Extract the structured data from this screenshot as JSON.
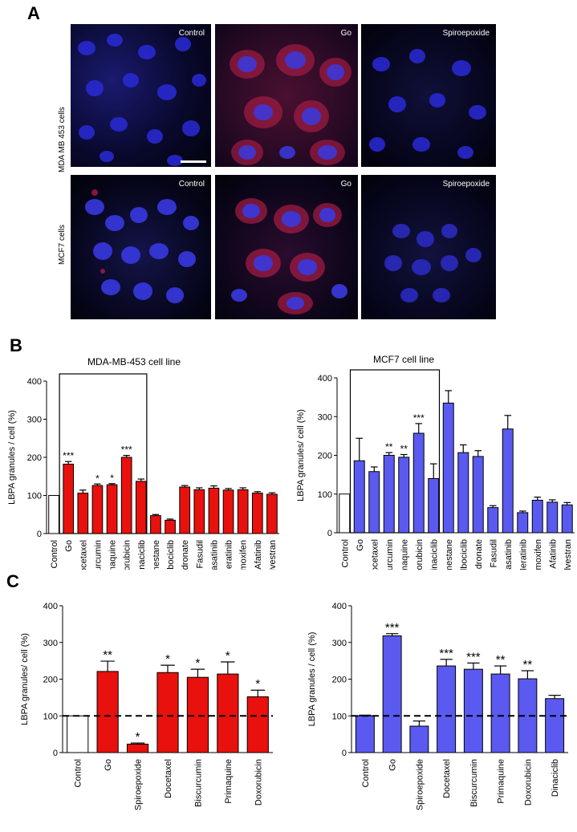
{
  "panels": {
    "a": "A",
    "b": "B",
    "c": "C"
  },
  "panel_a": {
    "rows": [
      {
        "label": "MDA MB 453  cells",
        "images": [
          "Control",
          "Go",
          "Spiroepoxide"
        ]
      },
      {
        "label": "MCF7 cells",
        "images": [
          "Control",
          "Go",
          "Spiroepoxide"
        ]
      }
    ]
  },
  "chart_data": [
    {
      "type": "bar",
      "panel": "B-left",
      "title": "MDA-MB-453 cell line",
      "ylabel": "LBPA granules / cell (%)",
      "ylim": [
        0,
        400
      ],
      "yticks": [
        "0",
        "100",
        "200",
        "300",
        "400"
      ],
      "categories": [
        "Control",
        "Go",
        "Docetaxel",
        "Biscurcumin",
        "Primaquine",
        "Doxorubicin",
        "Dinaciclib",
        "Exemestane",
        "Palbociclib",
        "Alendronate",
        "Fasudil",
        "Dasatinib",
        "Neratinib",
        "Tamoxifen",
        "Afatinib",
        "Fulvestran"
      ],
      "values": [
        100,
        182,
        106,
        126,
        128,
        200,
        137,
        47,
        35,
        122,
        115,
        119,
        114,
        115,
        106,
        103
      ],
      "errors": [
        0,
        7,
        8,
        4,
        3,
        5,
        6,
        3,
        3,
        4,
        5,
        6,
        4,
        5,
        4,
        4
      ],
      "significance": [
        "",
        "***",
        "",
        "*",
        "*",
        "***",
        "",
        "",
        "",
        "",
        "",
        "",
        "",
        "",
        "",
        ""
      ],
      "boxed_range": [
        1,
        6
      ],
      "colors": {
        "control": "#ffffff",
        "bars": "#e8110e"
      }
    },
    {
      "type": "bar",
      "panel": "B-right",
      "title": "MCF7 cell line",
      "ylabel": "LBPA granules/ cell (%)",
      "ylim": [
        0,
        400
      ],
      "yticks": [
        "0",
        "100",
        "200",
        "300",
        "400"
      ],
      "categories": [
        "Control",
        "Go",
        "Docetaxel",
        "Biscurcumin",
        "Primaquine",
        "Doxorubicin",
        "Dinaciclib",
        "Exemestane",
        "Palbociclib",
        "Alendronate",
        "Fasudil",
        "Dasatinib",
        "Neratinib",
        "Tamoxifen",
        "Afatinib",
        "Fulvestran"
      ],
      "values": [
        100,
        186,
        158,
        200,
        195,
        257,
        140,
        335,
        207,
        197,
        65,
        268,
        52,
        84,
        79,
        72
      ],
      "errors": [
        0,
        58,
        12,
        7,
        7,
        25,
        38,
        32,
        20,
        15,
        5,
        35,
        4,
        8,
        6,
        6
      ],
      "significance": [
        "",
        "",
        "",
        "**",
        "**",
        "***",
        "",
        "",
        "",
        "",
        "",
        "",
        "",
        "",
        "",
        ""
      ],
      "boxed_range": [
        1,
        6
      ],
      "colors": {
        "control": "#ffffff",
        "bars": "#5a5af0"
      }
    },
    {
      "type": "bar",
      "panel": "C-left",
      "ylabel": "LBPA granules/ cell (%)",
      "ylim": [
        0,
        400
      ],
      "yticks": [
        "0",
        "100",
        "200",
        "300",
        "400"
      ],
      "categories": [
        "Control",
        "Go",
        "Spiroepoxide",
        "Docetaxel",
        "Biscurcumin",
        "Primaquine",
        "Doxorubicin"
      ],
      "values": [
        100,
        221,
        23,
        218,
        205,
        214,
        152
      ],
      "errors": [
        0,
        28,
        3,
        20,
        22,
        33,
        18
      ],
      "significance": [
        "",
        "**",
        "*",
        "*",
        "*",
        "*",
        "*"
      ],
      "reference_line": 100,
      "colors": {
        "control": "#ffffff",
        "bars": "#e8110e"
      }
    },
    {
      "type": "bar",
      "panel": "C-right",
      "ylabel": "LBPA granules / cell (%)",
      "ylim": [
        0,
        400
      ],
      "yticks": [
        "0",
        "100",
        "200",
        "300",
        "400"
      ],
      "categories": [
        "Control",
        "Go",
        "Spiroepoxide",
        "Docetaxel",
        "Biscurcumin",
        "Primaquine",
        "Doxorubicin",
        "Dinaciclib"
      ],
      "values": [
        100,
        318,
        72,
        236,
        227,
        214,
        201,
        147
      ],
      "errors": [
        2,
        6,
        14,
        18,
        17,
        22,
        22,
        9
      ],
      "significance": [
        "",
        "***",
        "",
        "***",
        "***",
        "**",
        "**",
        ""
      ],
      "reference_line": 100,
      "colors": {
        "control": "#5a5af0",
        "bars": "#5a5af0"
      }
    }
  ]
}
